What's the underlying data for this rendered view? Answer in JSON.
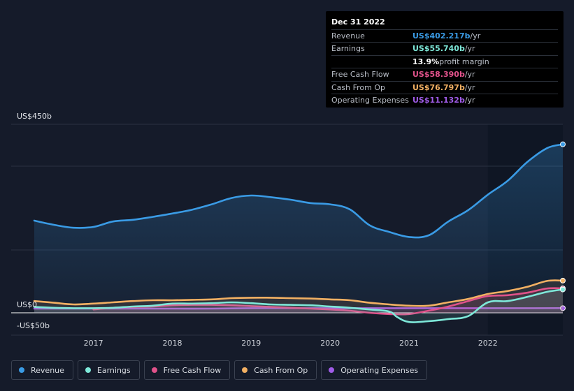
{
  "tooltip": {
    "date": "Dec 31 2022",
    "rows": [
      {
        "label": "Revenue",
        "value": "US$402.217b",
        "unit": "/yr",
        "color": "#3a9be5"
      },
      {
        "label": "Earnings",
        "value": "US$55.740b",
        "unit": "/yr",
        "color": "#7ee8d9"
      },
      {
        "label": "",
        "value": "13.9%",
        "unit": "profit margin",
        "color": "#ffffff"
      },
      {
        "label": "Free Cash Flow",
        "value": "US$58.390b",
        "unit": "/yr",
        "color": "#e0528a"
      },
      {
        "label": "Cash From Op",
        "value": "US$76.797b",
        "unit": "/yr",
        "color": "#f2b063"
      },
      {
        "label": "Operating Expenses",
        "value": "US$11.132b",
        "unit": "/yr",
        "color": "#a05ce8"
      }
    ]
  },
  "legend": [
    {
      "label": "Revenue",
      "color": "#3a9be5"
    },
    {
      "label": "Earnings",
      "color": "#7ee8d9"
    },
    {
      "label": "Free Cash Flow",
      "color": "#e0528a"
    },
    {
      "label": "Cash From Op",
      "color": "#f2b063"
    },
    {
      "label": "Operating Expenses",
      "color": "#a05ce8"
    }
  ],
  "chart_data": {
    "type": "line",
    "y_labels": [
      "US$450b",
      "US$0",
      "-US$50b"
    ],
    "x_ticks": [
      "2017",
      "2018",
      "2019",
      "2020",
      "2021",
      "2022"
    ],
    "ylim": [
      -50,
      450
    ],
    "xlim": [
      2016.1,
      2022.95
    ],
    "highlight_from": 2022.0,
    "series": [
      {
        "name": "Revenue",
        "color": "#3a9be5",
        "area": true,
        "points": [
          [
            2016.25,
            220
          ],
          [
            2016.5,
            210
          ],
          [
            2016.75,
            203
          ],
          [
            2017.0,
            205
          ],
          [
            2017.25,
            218
          ],
          [
            2017.5,
            222
          ],
          [
            2017.75,
            229
          ],
          [
            2018.0,
            237
          ],
          [
            2018.25,
            246
          ],
          [
            2018.5,
            259
          ],
          [
            2018.75,
            274
          ],
          [
            2019.0,
            280
          ],
          [
            2019.25,
            276
          ],
          [
            2019.5,
            270
          ],
          [
            2019.75,
            262
          ],
          [
            2020.0,
            259
          ],
          [
            2020.25,
            247
          ],
          [
            2020.5,
            209
          ],
          [
            2020.75,
            193
          ],
          [
            2021.0,
            181
          ],
          [
            2021.25,
            185
          ],
          [
            2021.5,
            218
          ],
          [
            2021.75,
            245
          ],
          [
            2022.0,
            282
          ],
          [
            2022.25,
            315
          ],
          [
            2022.5,
            360
          ],
          [
            2022.75,
            393
          ],
          [
            2022.95,
            402.2
          ]
        ]
      },
      {
        "name": "Earnings",
        "color": "#7ee8d9",
        "points": [
          [
            2016.25,
            14
          ],
          [
            2016.5,
            12
          ],
          [
            2016.75,
            11
          ],
          [
            2017.0,
            11
          ],
          [
            2017.25,
            12
          ],
          [
            2017.5,
            15
          ],
          [
            2017.75,
            17
          ],
          [
            2018.0,
            22
          ],
          [
            2018.25,
            22
          ],
          [
            2018.5,
            23
          ],
          [
            2018.75,
            25
          ],
          [
            2019.0,
            23
          ],
          [
            2019.25,
            20
          ],
          [
            2019.5,
            19
          ],
          [
            2019.75,
            18
          ],
          [
            2020.0,
            15
          ],
          [
            2020.25,
            12
          ],
          [
            2020.5,
            8
          ],
          [
            2020.75,
            3
          ],
          [
            2020.85,
            -10
          ],
          [
            2021.0,
            -22
          ],
          [
            2021.25,
            -20
          ],
          [
            2021.5,
            -15
          ],
          [
            2021.75,
            -8
          ],
          [
            2022.0,
            25
          ],
          [
            2022.25,
            28
          ],
          [
            2022.5,
            38
          ],
          [
            2022.75,
            50
          ],
          [
            2022.95,
            55.7
          ]
        ]
      },
      {
        "name": "Free Cash Flow",
        "color": "#e0528a",
        "points": [
          [
            2017.0,
            8
          ],
          [
            2017.25,
            12
          ],
          [
            2017.5,
            14
          ],
          [
            2017.75,
            15
          ],
          [
            2018.0,
            18
          ],
          [
            2018.25,
            19
          ],
          [
            2018.5,
            19
          ],
          [
            2018.75,
            18
          ],
          [
            2019.0,
            16
          ],
          [
            2019.25,
            14
          ],
          [
            2019.5,
            12
          ],
          [
            2019.75,
            10
          ],
          [
            2020.0,
            8
          ],
          [
            2020.25,
            5
          ],
          [
            2020.5,
            0
          ],
          [
            2020.75,
            -3
          ],
          [
            2021.0,
            -3
          ],
          [
            2021.25,
            5
          ],
          [
            2021.5,
            15
          ],
          [
            2021.75,
            28
          ],
          [
            2022.0,
            40
          ],
          [
            2022.25,
            42
          ],
          [
            2022.5,
            48
          ],
          [
            2022.75,
            58
          ],
          [
            2022.95,
            58.4
          ]
        ]
      },
      {
        "name": "Cash From Op",
        "color": "#f2b063",
        "points": [
          [
            2016.25,
            28
          ],
          [
            2016.5,
            24
          ],
          [
            2016.75,
            20
          ],
          [
            2017.0,
            22
          ],
          [
            2017.25,
            25
          ],
          [
            2017.5,
            28
          ],
          [
            2017.75,
            30
          ],
          [
            2018.0,
            30
          ],
          [
            2018.25,
            31
          ],
          [
            2018.5,
            32
          ],
          [
            2018.75,
            35
          ],
          [
            2019.0,
            36
          ],
          [
            2019.25,
            36
          ],
          [
            2019.5,
            35
          ],
          [
            2019.75,
            34
          ],
          [
            2020.0,
            32
          ],
          [
            2020.25,
            30
          ],
          [
            2020.5,
            24
          ],
          [
            2020.75,
            20
          ],
          [
            2021.0,
            17
          ],
          [
            2021.25,
            17
          ],
          [
            2021.5,
            25
          ],
          [
            2021.75,
            33
          ],
          [
            2022.0,
            45
          ],
          [
            2022.25,
            52
          ],
          [
            2022.5,
            62
          ],
          [
            2022.75,
            76
          ],
          [
            2022.95,
            76.8
          ]
        ]
      },
      {
        "name": "Operating Expenses",
        "color": "#a05ce8",
        "points": [
          [
            2016.25,
            10
          ],
          [
            2016.5,
            10
          ],
          [
            2016.75,
            10
          ],
          [
            2017.0,
            10
          ],
          [
            2017.5,
            10
          ],
          [
            2018.0,
            10
          ],
          [
            2018.5,
            10
          ],
          [
            2019.0,
            11
          ],
          [
            2019.5,
            11
          ],
          [
            2020.0,
            11
          ],
          [
            2020.5,
            11
          ],
          [
            2021.0,
            11
          ],
          [
            2021.5,
            11
          ],
          [
            2022.0,
            11
          ],
          [
            2022.5,
            11
          ],
          [
            2022.95,
            11.1
          ]
        ]
      }
    ]
  }
}
